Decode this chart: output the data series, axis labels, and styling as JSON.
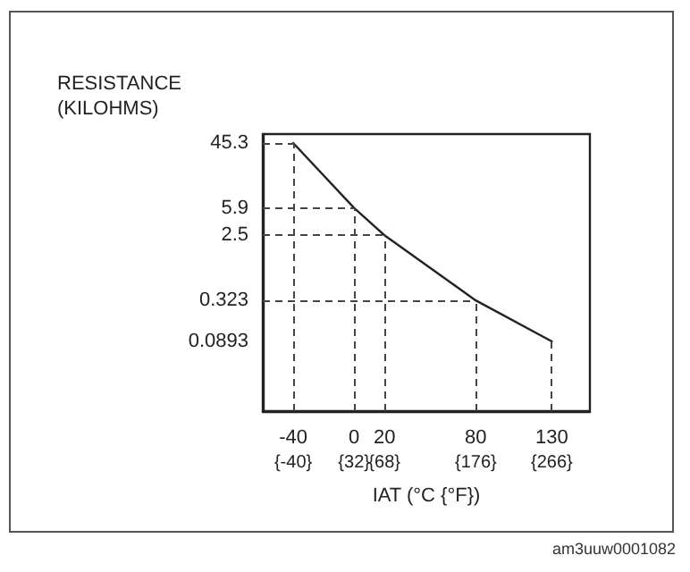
{
  "chart_data": {
    "type": "line",
    "ylabel": "RESISTANCE (KILOHMS)",
    "xlabel": "IAT (°C {°F})",
    "x": [
      -40,
      0,
      20,
      80,
      130
    ],
    "series": [
      {
        "color": "#222222",
        "values": [
          45.3,
          5.9,
          2.5,
          0.323,
          0.0893
        ]
      }
    ],
    "log": "y",
    "ylim": [
      0.01,
      60
    ],
    "yticks": [
      0.0893,
      0.323,
      2.5,
      5.9,
      45.3
    ],
    "xlim": [
      -60,
      155
    ],
    "xticks": [
      -40,
      0,
      20,
      80,
      130
    ],
    "x2lim": [
      -76,
      311
    ],
    "x2ticks": [
      {
        "value": -40,
        "label": "{-40}"
      },
      {
        "value": 32,
        "label": "{32}"
      },
      {
        "value": 68,
        "label": "{68}"
      },
      {
        "value": 176,
        "label": "{176}"
      },
      {
        "value": 266,
        "label": "{266}"
      }
    ],
    "marker": "none",
    "line_style": "solid",
    "grid": false,
    "ref_lines": [
      {
        "axis": "x",
        "value": -40,
        "line_style": "dashed"
      },
      {
        "axis": "x",
        "value": 0,
        "line_style": "dashed"
      },
      {
        "axis": "x",
        "value": 20,
        "line_style": "dashed"
      },
      {
        "axis": "x",
        "value": 80,
        "line_style": "dashed"
      },
      {
        "axis": "x",
        "value": 130,
        "line_style": "dashed"
      },
      {
        "axis": "y",
        "value": 45.3,
        "line_style": "dashed"
      },
      {
        "axis": "y",
        "value": 5.9,
        "line_style": "dashed"
      },
      {
        "axis": "y",
        "value": 2.5,
        "line_style": "dashed"
      },
      {
        "axis": "y",
        "value": 0.323,
        "line_style": "dashed"
      }
    ],
    "annotations": [
      "am3uuw0001082"
    ]
  }
}
